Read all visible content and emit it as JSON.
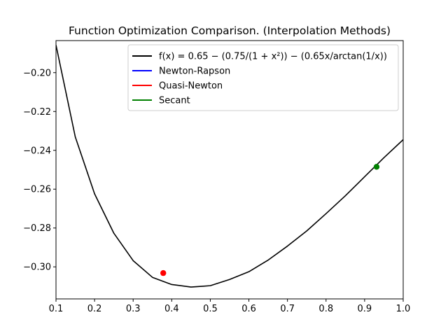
{
  "chart_data": {
    "type": "line",
    "title": "Function Optimization Comparison. (Interpolation Methods)",
    "xlabel": "",
    "ylabel": "",
    "xlim": [
      0.1,
      1.0
    ],
    "ylim": [
      -0.3165,
      -0.1835
    ],
    "x_ticks": [
      0.1,
      0.2,
      0.3,
      0.4,
      0.5,
      0.6,
      0.7,
      0.8,
      0.9,
      1.0
    ],
    "x_tick_labels": [
      "0.1",
      "0.2",
      "0.3",
      "0.4",
      "0.5",
      "0.6",
      "0.7",
      "0.8",
      "0.9",
      "1.0"
    ],
    "y_ticks": [
      -0.2,
      -0.22,
      -0.24,
      -0.26,
      -0.28,
      -0.3
    ],
    "y_tick_labels": [
      "−0.20",
      "−0.22",
      "−0.24",
      "−0.26",
      "−0.28",
      "−0.30"
    ],
    "grid": false,
    "legend_placement": "upper-right",
    "series": [
      {
        "name": "f(x) = 0.65 − (0.75/(1 + x²)) − (0.65x/arctan(1/x))",
        "color": "#000000",
        "x": [
          0.1,
          0.15,
          0.2,
          0.25,
          0.3,
          0.35,
          0.4,
          0.45,
          0.48,
          0.5,
          0.55,
          0.6,
          0.65,
          0.7,
          0.75,
          0.8,
          0.85,
          0.9,
          0.95,
          1.0
        ],
        "y": [
          -0.1858,
          -0.2331,
          -0.2624,
          -0.2827,
          -0.2968,
          -0.3054,
          -0.3091,
          -0.3104,
          -0.31,
          -0.3097,
          -0.3065,
          -0.3025,
          -0.2965,
          -0.2893,
          -0.2815,
          -0.2726,
          -0.2634,
          -0.2536,
          -0.2438,
          -0.2345
        ]
      },
      {
        "name": "Newton-Rapson",
        "color": "#0000ff",
        "x": [],
        "y": []
      },
      {
        "name": "Quasi-Newton",
        "color": "#ff0000",
        "x": [
          0.378
        ],
        "y": [
          -0.3032
        ]
      },
      {
        "name": "Secant",
        "color": "#008000",
        "x": [
          0.931
        ],
        "y": [
          -0.2485
        ]
      }
    ]
  }
}
